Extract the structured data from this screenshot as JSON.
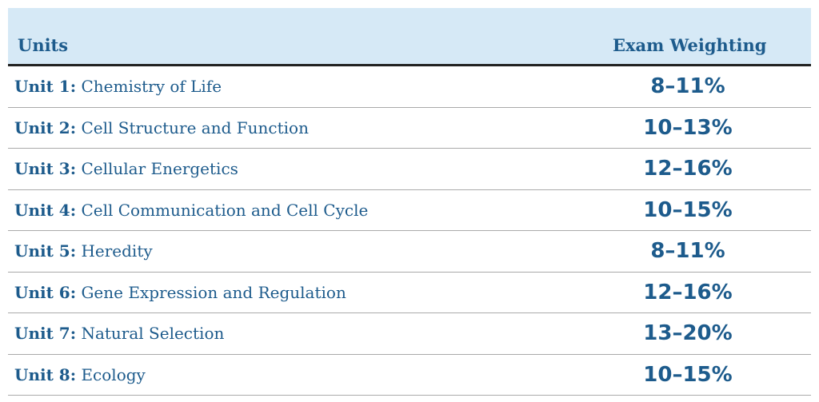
{
  "table": {
    "header": [
      "Units",
      "Exam Weighting"
    ],
    "rows": [
      {
        "unit": "Unit 1:",
        "title": "Chemistry of Life",
        "weighting": "8–11%"
      },
      {
        "unit": "Unit 2:",
        "title": "Cell Structure and Function",
        "weighting": "10–13%"
      },
      {
        "unit": "Unit 3:",
        "title": "Cellular Energetics",
        "weighting": "12–16%"
      },
      {
        "unit": "Unit 4:",
        "title": "Cell Communication and Cell Cycle",
        "weighting": "10–15%"
      },
      {
        "unit": "Unit 5:",
        "title": "Heredity",
        "weighting": "8–11%"
      },
      {
        "unit": "Unit 6:",
        "title": "Gene Expression and Regulation",
        "weighting": "12–16%"
      },
      {
        "unit": "Unit 7:",
        "title": "Natural Selection",
        "weighting": "13–20%"
      },
      {
        "unit": "Unit 8:",
        "title": "Ecology",
        "weighting": "10–15%"
      }
    ]
  }
}
